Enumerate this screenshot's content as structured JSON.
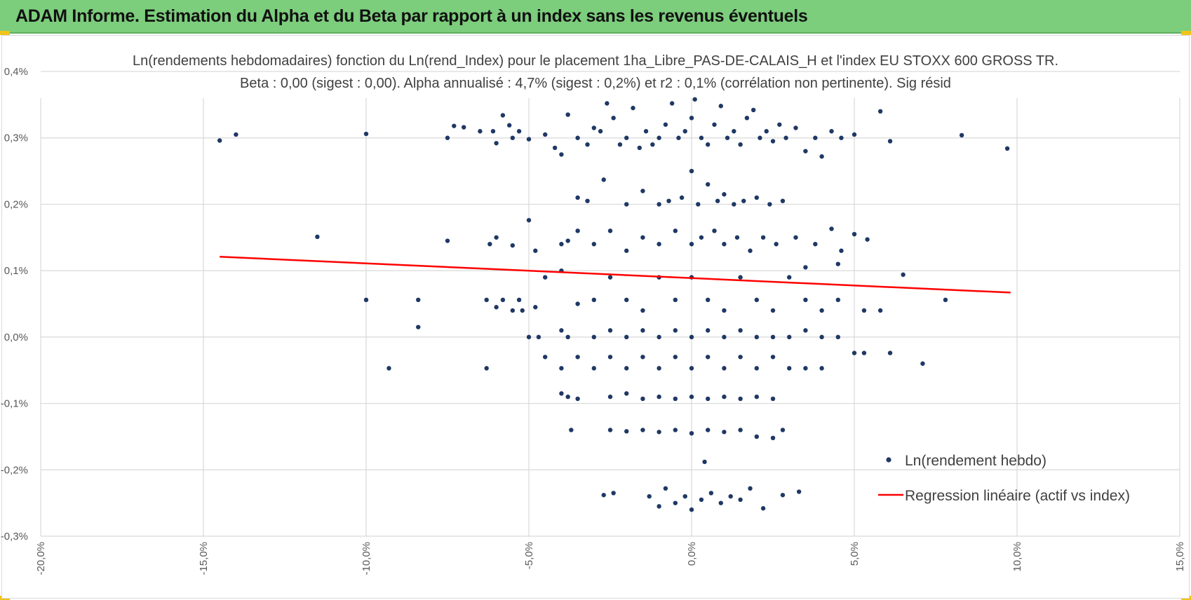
{
  "header": {
    "title": "ADAM Informe. Estimation du Alpha et du Beta par rapport à un index sans les revenus éventuels"
  },
  "colors": {
    "banner": "#7ccd7c",
    "points": "#1f3864",
    "regression": "#ff0000",
    "grid": "#d9d9d9"
  },
  "chart_data": {
    "type": "scatter",
    "title": "Ln(rendements hebdomadaires) fonction du Ln(rend_Index) pour le placement 1ha_Libre_PAS-DE-CALAIS_H et l'index EU STOXX 600 GROSS TR.",
    "subtitle": "Beta : 0,00 (sigest : 0,00). Alpha annualisé : 4,7% (sigest : 0,2%) et r2 : 0,1% (corrélation non pertinente). Sig résid",
    "xlabel": "",
    "ylabel": "",
    "xlim": [
      -20,
      15
    ],
    "ylim": [
      -0.3,
      0.4
    ],
    "grid": true,
    "legend_position": "bottom-right",
    "x_ticks": [
      "-20,0%",
      "-15,0%",
      "-10,0%",
      "-5,0%",
      "0,0%",
      "5,0%",
      "10,0%",
      "15,0%"
    ],
    "y_ticks": [
      "0,4%",
      "0,3%",
      "0,2%",
      "0,1%",
      "0,0%",
      "-0,1%",
      "-0,2%",
      "-0,3%"
    ],
    "series": [
      {
        "name": "Ln(rendement hebdo)",
        "type": "scatter",
        "points": [
          [
            -14.5,
            0.296
          ],
          [
            -14.0,
            0.305
          ],
          [
            -10.0,
            0.306
          ],
          [
            -7.5,
            0.3
          ],
          [
            -7.3,
            0.318
          ],
          [
            -7.0,
            0.316
          ],
          [
            -6.5,
            0.31
          ],
          [
            -6.1,
            0.31
          ],
          [
            -6.0,
            0.292
          ],
          [
            -5.8,
            0.334
          ],
          [
            -5.6,
            0.319
          ],
          [
            -5.5,
            0.3
          ],
          [
            -5.3,
            0.31
          ],
          [
            -5.0,
            0.298
          ],
          [
            -4.5,
            0.305
          ],
          [
            -4.2,
            0.285
          ],
          [
            -4.0,
            0.275
          ],
          [
            -3.8,
            0.335
          ],
          [
            -3.5,
            0.3
          ],
          [
            -3.2,
            0.29
          ],
          [
            -3.0,
            0.315
          ],
          [
            -2.8,
            0.31
          ],
          [
            -2.6,
            0.352
          ],
          [
            -2.4,
            0.33
          ],
          [
            -2.2,
            0.29
          ],
          [
            -2.0,
            0.3
          ],
          [
            -1.8,
            0.345
          ],
          [
            -1.6,
            0.285
          ],
          [
            -1.4,
            0.31
          ],
          [
            -1.2,
            0.29
          ],
          [
            -1.0,
            0.3
          ],
          [
            -0.8,
            0.32
          ],
          [
            -0.6,
            0.352
          ],
          [
            -0.4,
            0.3
          ],
          [
            -0.2,
            0.31
          ],
          [
            0.0,
            0.33
          ],
          [
            0.1,
            0.358
          ],
          [
            0.3,
            0.3
          ],
          [
            0.5,
            0.29
          ],
          [
            0.7,
            0.32
          ],
          [
            0.9,
            0.348
          ],
          [
            1.1,
            0.3
          ],
          [
            1.3,
            0.31
          ],
          [
            1.5,
            0.29
          ],
          [
            1.7,
            0.33
          ],
          [
            1.9,
            0.342
          ],
          [
            2.1,
            0.3
          ],
          [
            2.3,
            0.31
          ],
          [
            2.5,
            0.295
          ],
          [
            2.7,
            0.32
          ],
          [
            2.9,
            0.3
          ],
          [
            3.2,
            0.315
          ],
          [
            3.5,
            0.28
          ],
          [
            3.8,
            0.3
          ],
          [
            4.0,
            0.272
          ],
          [
            4.3,
            0.31
          ],
          [
            4.6,
            0.3
          ],
          [
            5.0,
            0.305
          ],
          [
            5.8,
            0.34
          ],
          [
            6.1,
            0.295
          ],
          [
            8.3,
            0.304
          ],
          [
            9.7,
            0.284
          ],
          [
            -3.5,
            0.21
          ],
          [
            -3.2,
            0.205
          ],
          [
            -2.7,
            0.237
          ],
          [
            -2.0,
            0.2
          ],
          [
            -1.5,
            0.22
          ],
          [
            -1.0,
            0.2
          ],
          [
            -0.7,
            0.205
          ],
          [
            -0.3,
            0.21
          ],
          [
            0.0,
            0.25
          ],
          [
            0.2,
            0.2
          ],
          [
            0.5,
            0.23
          ],
          [
            0.8,
            0.205
          ],
          [
            1.0,
            0.215
          ],
          [
            1.3,
            0.2
          ],
          [
            1.6,
            0.205
          ],
          [
            2.0,
            0.21
          ],
          [
            2.4,
            0.2
          ],
          [
            2.8,
            0.205
          ],
          [
            -11.5,
            0.151
          ],
          [
            -7.5,
            0.145
          ],
          [
            -6.2,
            0.14
          ],
          [
            -6.0,
            0.15
          ],
          [
            -5.5,
            0.138
          ],
          [
            -5.0,
            0.176
          ],
          [
            -4.8,
            0.13
          ],
          [
            -4.0,
            0.14
          ],
          [
            -3.8,
            0.145
          ],
          [
            -3.5,
            0.16
          ],
          [
            -3.0,
            0.14
          ],
          [
            -2.5,
            0.16
          ],
          [
            -2.0,
            0.13
          ],
          [
            -1.5,
            0.15
          ],
          [
            -1.0,
            0.14
          ],
          [
            -0.5,
            0.16
          ],
          [
            0.0,
            0.14
          ],
          [
            0.3,
            0.15
          ],
          [
            0.7,
            0.16
          ],
          [
            1.0,
            0.14
          ],
          [
            1.4,
            0.15
          ],
          [
            1.8,
            0.13
          ],
          [
            2.2,
            0.15
          ],
          [
            2.6,
            0.14
          ],
          [
            3.2,
            0.15
          ],
          [
            3.8,
            0.14
          ],
          [
            4.3,
            0.163
          ],
          [
            4.6,
            0.13
          ],
          [
            5.0,
            0.155
          ],
          [
            5.4,
            0.147
          ],
          [
            4.5,
            0.11
          ],
          [
            3.5,
            0.105
          ],
          [
            -10.0,
            0.056
          ],
          [
            -8.4,
            0.056
          ],
          [
            -6.3,
            0.056
          ],
          [
            -6.0,
            0.045
          ],
          [
            -5.8,
            0.056
          ],
          [
            -5.5,
            0.04
          ],
          [
            -5.3,
            0.056
          ],
          [
            -5.2,
            0.04
          ],
          [
            -4.8,
            0.045
          ],
          [
            -4.5,
            0.09
          ],
          [
            -4.0,
            0.1
          ],
          [
            -3.5,
            0.05
          ],
          [
            -3.0,
            0.056
          ],
          [
            -2.5,
            0.09
          ],
          [
            -2.0,
            0.056
          ],
          [
            -1.5,
            0.04
          ],
          [
            -1.0,
            0.09
          ],
          [
            -0.5,
            0.056
          ],
          [
            0.0,
            0.09
          ],
          [
            0.5,
            0.056
          ],
          [
            1.0,
            0.04
          ],
          [
            1.5,
            0.09
          ],
          [
            2.0,
            0.056
          ],
          [
            2.5,
            0.04
          ],
          [
            3.0,
            0.09
          ],
          [
            3.5,
            0.056
          ],
          [
            4.0,
            0.04
          ],
          [
            4.5,
            0.056
          ],
          [
            5.3,
            0.04
          ],
          [
            5.8,
            0.04
          ],
          [
            6.5,
            0.094
          ],
          [
            7.8,
            0.056
          ],
          [
            -8.4,
            0.015
          ],
          [
            -5.0,
            0.0
          ],
          [
            -4.7,
            0.0
          ],
          [
            -4.0,
            0.01
          ],
          [
            -3.8,
            0.0
          ],
          [
            -3.0,
            0.0
          ],
          [
            -2.5,
            0.01
          ],
          [
            -2.0,
            0.0
          ],
          [
            -1.5,
            0.01
          ],
          [
            -1.0,
            0.0
          ],
          [
            -0.5,
            0.01
          ],
          [
            0.0,
            0.0
          ],
          [
            0.5,
            0.01
          ],
          [
            1.0,
            0.0
          ],
          [
            1.5,
            0.01
          ],
          [
            2.0,
            0.0
          ],
          [
            2.5,
            0.0
          ],
          [
            3.0,
            0.0
          ],
          [
            3.5,
            0.01
          ],
          [
            4.0,
            0.0
          ],
          [
            4.5,
            0.0
          ],
          [
            -9.3,
            -0.047
          ],
          [
            -6.3,
            -0.047
          ],
          [
            -4.5,
            -0.03
          ],
          [
            -4.0,
            -0.047
          ],
          [
            -3.5,
            -0.03
          ],
          [
            -3.0,
            -0.047
          ],
          [
            -2.5,
            -0.03
          ],
          [
            -2.0,
            -0.047
          ],
          [
            -1.5,
            -0.03
          ],
          [
            -1.0,
            -0.047
          ],
          [
            -0.5,
            -0.03
          ],
          [
            0.0,
            -0.047
          ],
          [
            0.5,
            -0.03
          ],
          [
            1.0,
            -0.047
          ],
          [
            1.5,
            -0.03
          ],
          [
            2.0,
            -0.047
          ],
          [
            2.5,
            -0.03
          ],
          [
            3.0,
            -0.047
          ],
          [
            3.5,
            -0.047
          ],
          [
            4.0,
            -0.047
          ],
          [
            5.0,
            -0.024
          ],
          [
            5.3,
            -0.024
          ],
          [
            6.1,
            -0.024
          ],
          [
            7.1,
            -0.04
          ],
          [
            -4.0,
            -0.085
          ],
          [
            -3.8,
            -0.09
          ],
          [
            -3.5,
            -0.093
          ],
          [
            -2.5,
            -0.09
          ],
          [
            -2.0,
            -0.085
          ],
          [
            -1.5,
            -0.093
          ],
          [
            -1.0,
            -0.09
          ],
          [
            -0.5,
            -0.093
          ],
          [
            0.0,
            -0.09
          ],
          [
            0.5,
            -0.093
          ],
          [
            1.0,
            -0.09
          ],
          [
            1.5,
            -0.093
          ],
          [
            2.0,
            -0.09
          ],
          [
            2.5,
            -0.093
          ],
          [
            -3.7,
            -0.14
          ],
          [
            -2.5,
            -0.14
          ],
          [
            -2.0,
            -0.142
          ],
          [
            -1.5,
            -0.14
          ],
          [
            -1.0,
            -0.143
          ],
          [
            -0.5,
            -0.14
          ],
          [
            0.0,
            -0.145
          ],
          [
            0.5,
            -0.14
          ],
          [
            1.0,
            -0.143
          ],
          [
            1.5,
            -0.14
          ],
          [
            2.0,
            -0.15
          ],
          [
            2.5,
            -0.152
          ],
          [
            2.8,
            -0.14
          ],
          [
            0.4,
            -0.188
          ],
          [
            -2.7,
            -0.238
          ],
          [
            -2.4,
            -0.235
          ],
          [
            -1.3,
            -0.24
          ],
          [
            -1.0,
            -0.255
          ],
          [
            -0.8,
            -0.228
          ],
          [
            -0.5,
            -0.25
          ],
          [
            -0.2,
            -0.24
          ],
          [
            0.0,
            -0.26
          ],
          [
            0.3,
            -0.245
          ],
          [
            0.6,
            -0.235
          ],
          [
            0.9,
            -0.25
          ],
          [
            1.2,
            -0.24
          ],
          [
            1.5,
            -0.245
          ],
          [
            1.8,
            -0.228
          ],
          [
            2.2,
            -0.258
          ],
          [
            2.8,
            -0.238
          ],
          [
            3.3,
            -0.233
          ]
        ]
      },
      {
        "name": "Regression linéaire (actif vs index)",
        "type": "line",
        "points": [
          [
            -14.5,
            0.121
          ],
          [
            9.8,
            0.067
          ]
        ]
      }
    ]
  }
}
